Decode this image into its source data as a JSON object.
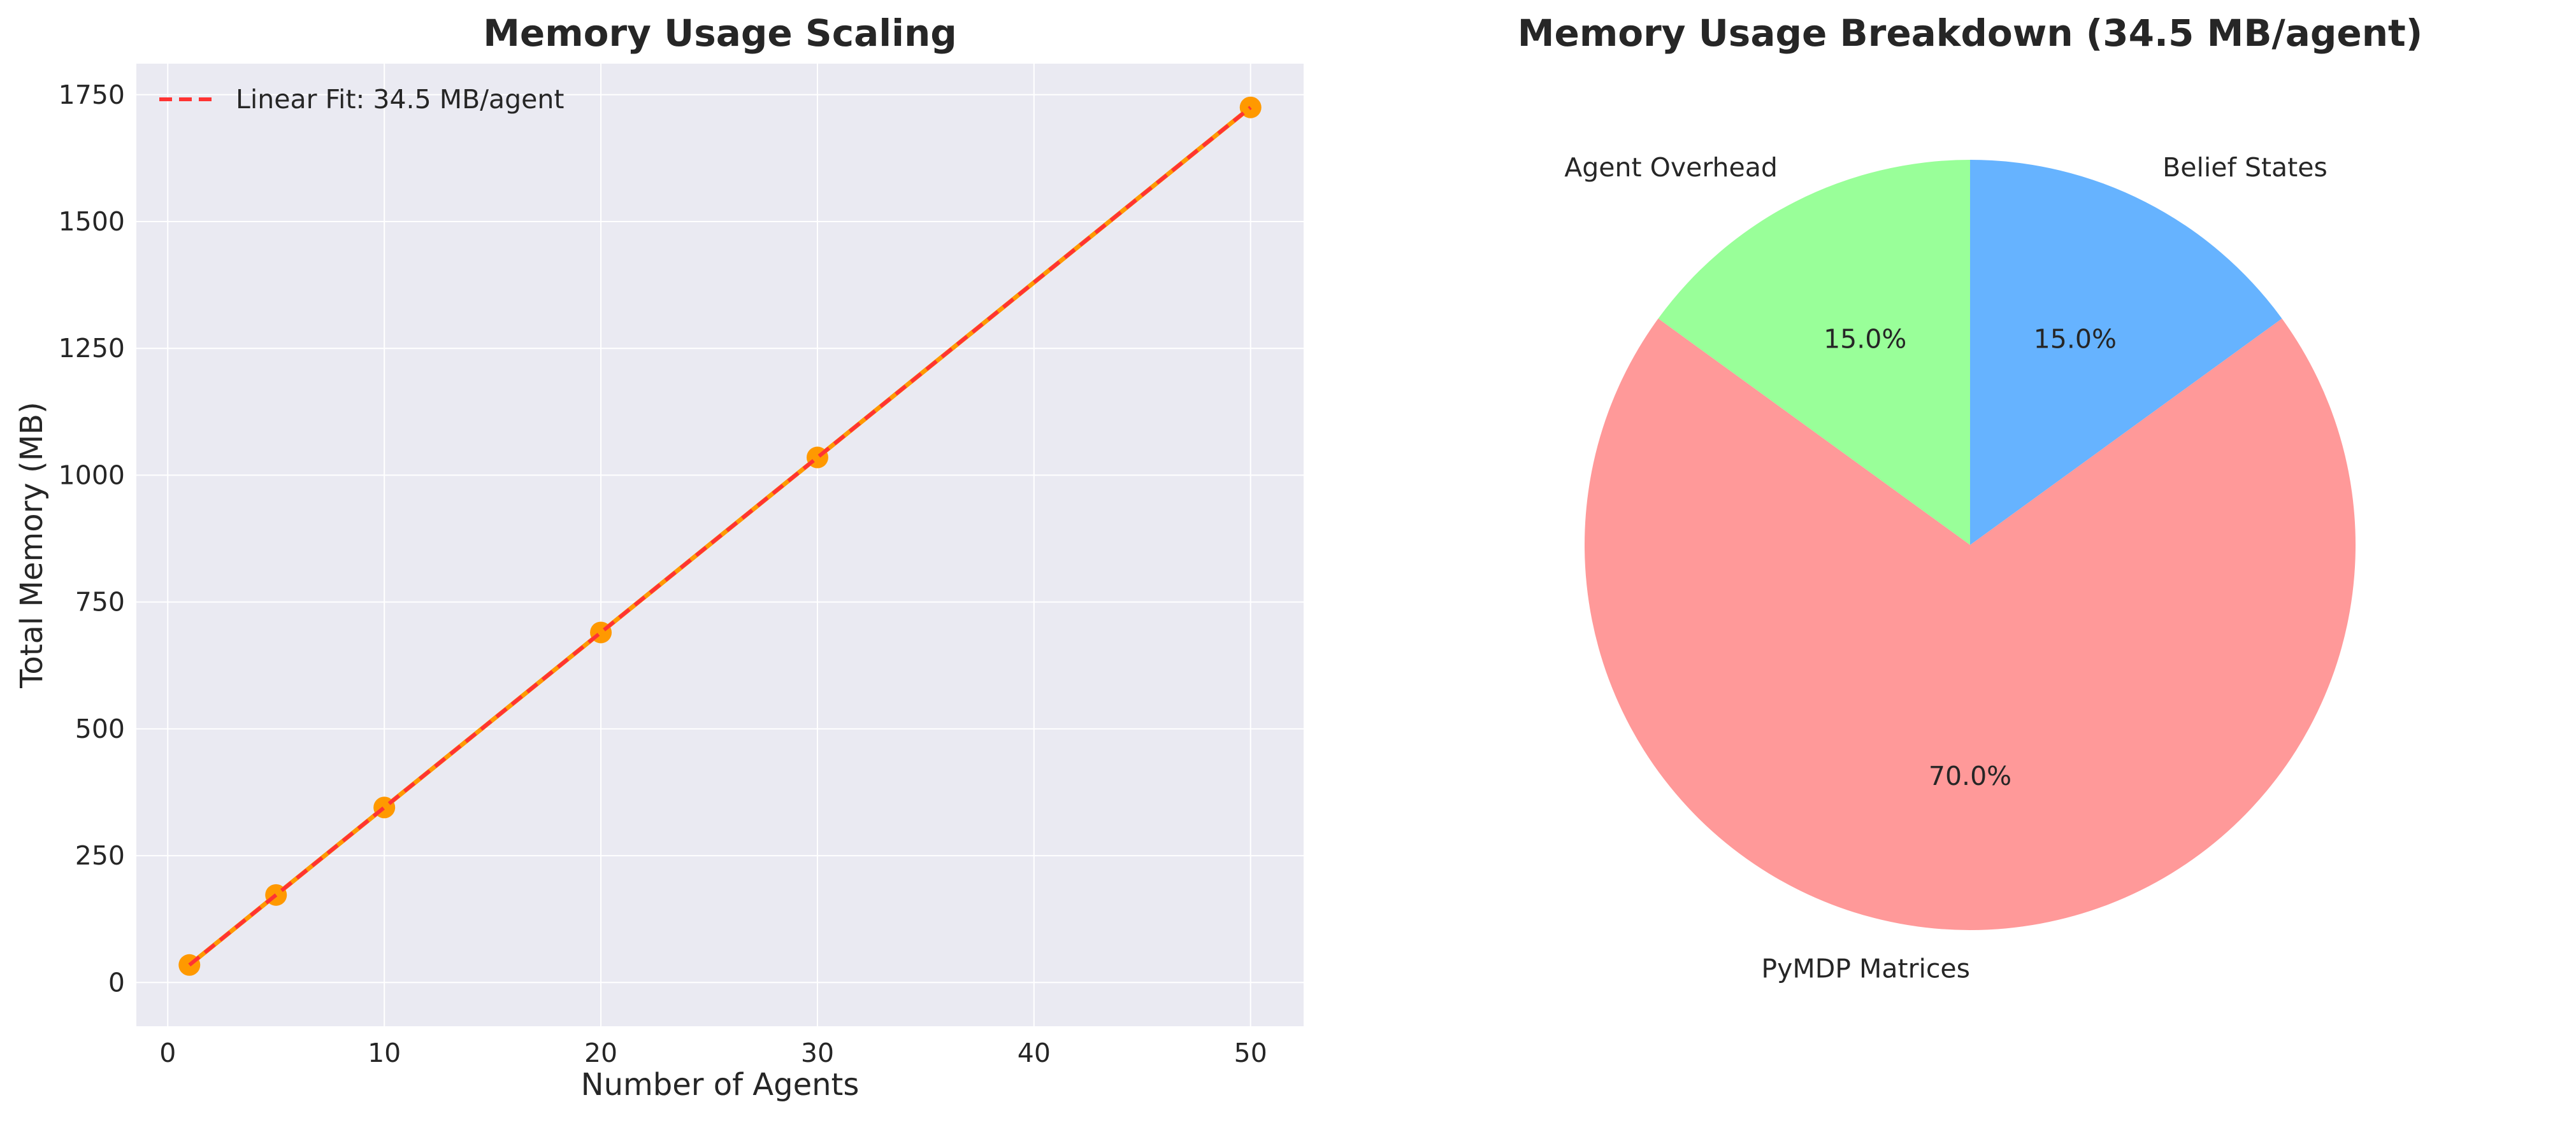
{
  "chart_data": [
    {
      "type": "line",
      "title": "Memory Usage Scaling",
      "xlabel": "Number of Agents",
      "ylabel": "Total Memory (MB)",
      "xlim": [
        -1.45,
        52.45
      ],
      "ylim": [
        -86.25,
        1811.25
      ],
      "xticks": [
        0,
        10,
        20,
        30,
        40,
        50
      ],
      "yticks": [
        0,
        250,
        500,
        750,
        1000,
        1250,
        1500,
        1750
      ],
      "grid": true,
      "background": "#eaeaf2",
      "legend_placement": "top-left",
      "series": [
        {
          "kind": "scatter-line",
          "color": "#ff9900",
          "x": [
            1,
            5,
            10,
            20,
            30,
            50
          ],
          "y": [
            34.5,
            172.5,
            345,
            690,
            1035,
            1725
          ]
        },
        {
          "kind": "fit-line",
          "name": "Linear Fit: 34.5 MB/agent",
          "style": "dashed",
          "color": "#ff3333",
          "x": [
            1,
            50
          ],
          "y": [
            34.5,
            1725
          ]
        }
      ]
    },
    {
      "type": "pie",
      "title": "Memory Usage Breakdown (34.5 MB/agent)",
      "start_angle_deg": 90,
      "direction": "counterclockwise",
      "slices": [
        {
          "label": "Agent Overhead",
          "value": 15.0,
          "pct_label": "15.0%",
          "color": "#99ff99"
        },
        {
          "label": "PyMDP Matrices",
          "value": 70.0,
          "pct_label": "70.0%",
          "color": "#ff9999"
        },
        {
          "label": "Belief States",
          "value": 15.0,
          "pct_label": "15.0%",
          "color": "#66b3ff"
        }
      ]
    }
  ]
}
